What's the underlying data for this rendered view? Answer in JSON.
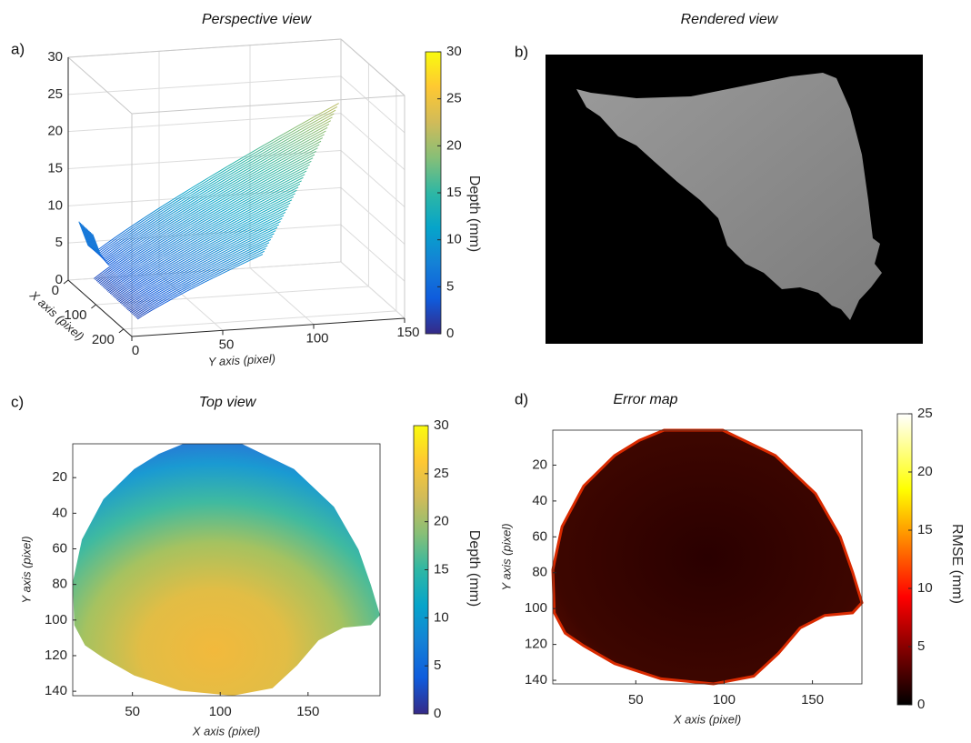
{
  "chart_data": [
    {
      "type": "surface3d",
      "panel_label": "a)",
      "title": "Perspective view",
      "xlabel": "X axis (pixel)",
      "ylabel": "Y axis (pixel)",
      "xlim": [
        0,
        230
      ],
      "xticks": [
        0,
        100,
        200
      ],
      "ylim": [
        0,
        150
      ],
      "yticks": [
        0,
        50,
        100,
        150
      ],
      "zlim": [
        0,
        30
      ],
      "zticks": [
        0,
        5,
        10,
        15,
        20,
        25,
        30
      ],
      "grid": true,
      "colorbar": {
        "label": "Depth (mm)",
        "lim": [
          0,
          30
        ],
        "ticks": [
          0,
          5,
          10,
          15,
          20,
          25,
          30
        ],
        "colormap": "parula"
      }
    },
    {
      "type": "image",
      "panel_label": "b)",
      "title": "Rendered view"
    },
    {
      "type": "heatmap",
      "panel_label": "c)",
      "title": "Top view",
      "xlabel": "X axis (pixel)",
      "ylabel": "Y axis (pixel)",
      "xlim": [
        16,
        191
      ],
      "xticks": [
        50,
        100,
        150
      ],
      "ylim": [
        1,
        142.5
      ],
      "yticks": [
        20,
        40,
        60,
        80,
        100,
        120,
        140
      ],
      "y_reversed": true,
      "colorbar": {
        "label": "Depth (mm)",
        "lim": [
          0,
          30
        ],
        "ticks": [
          0,
          5,
          10,
          15,
          20,
          25,
          30
        ],
        "colormap": "parula"
      }
    },
    {
      "type": "heatmap",
      "panel_label": "d)",
      "title": "Error map",
      "xlabel": "X axis (pixel)",
      "ylabel": "Y axis (pixel)",
      "xlim": [
        3,
        178
      ],
      "xticks": [
        50,
        100,
        150
      ],
      "ylim": [
        0.5,
        142
      ],
      "yticks": [
        20,
        40,
        60,
        80,
        100,
        120,
        140
      ],
      "y_reversed": true,
      "colorbar": {
        "label": "RMSE (mm)",
        "lim": [
          0,
          25
        ],
        "ticks": [
          0,
          5,
          10,
          15,
          20,
          25
        ],
        "colormap": "hot"
      }
    }
  ]
}
